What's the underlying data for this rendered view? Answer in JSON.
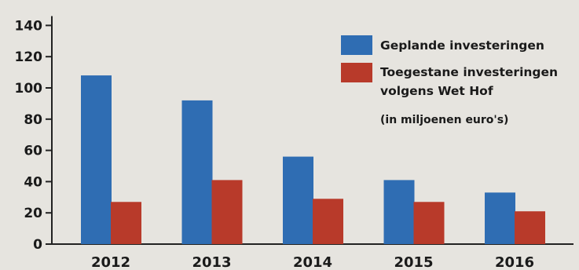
{
  "chart_data": {
    "type": "bar",
    "categories": [
      "2012",
      "2013",
      "2014",
      "2015",
      "2016"
    ],
    "series": [
      {
        "name": "Geplande investeringen",
        "values": [
          108,
          92,
          56,
          41,
          33
        ],
        "color": "#2f6db3"
      },
      {
        "name": "Toegestane investeringen volgens Wet Hof",
        "values": [
          27,
          41,
          29,
          27,
          21
        ],
        "color": "#b83a2a"
      }
    ],
    "legend_lines": {
      "series0": [
        "Geplande investeringen"
      ],
      "series1": [
        "Toegestane investeringen",
        "volgens Wet Hof"
      ]
    },
    "note": "(in miljoenen euro's)",
    "yticks": [
      0,
      20,
      40,
      60,
      80,
      100,
      120,
      140
    ],
    "ylim": [
      0,
      145
    ],
    "grid": false,
    "legend_position": "top-right",
    "title": "",
    "xlabel": "",
    "ylabel": ""
  }
}
